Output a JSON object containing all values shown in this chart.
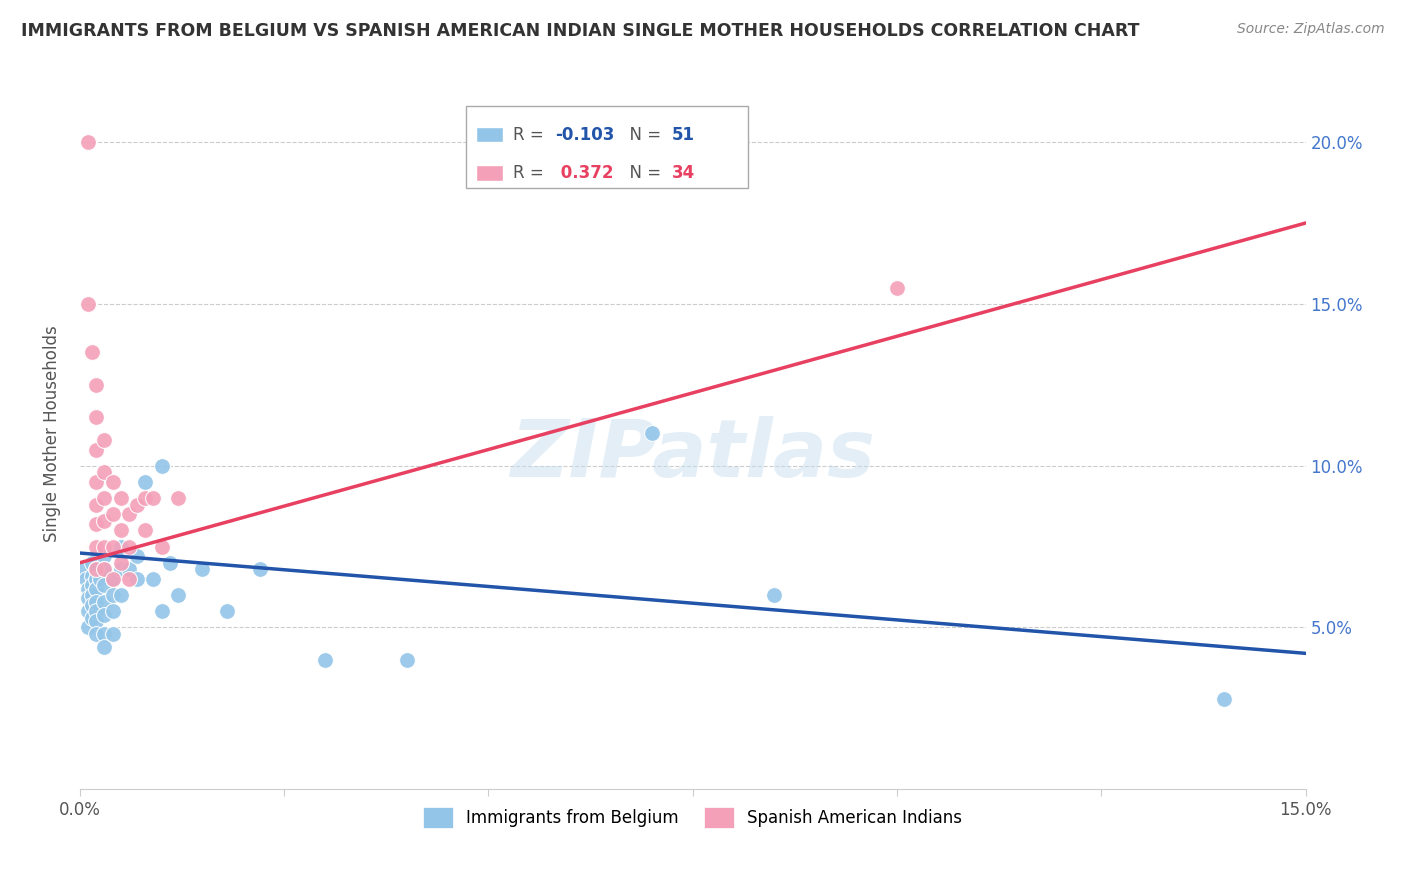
{
  "title": "IMMIGRANTS FROM BELGIUM VS SPANISH AMERICAN INDIAN SINGLE MOTHER HOUSEHOLDS CORRELATION CHART",
  "source": "Source: ZipAtlas.com",
  "ylabel": "Single Mother Households",
  "xlim": [
    0.0,
    0.15
  ],
  "ylim": [
    0.0,
    0.22
  ],
  "belgium_color": "#92C5E8",
  "spanish_color": "#F4A0B8",
  "trendline_belgium_color": "#2255AA",
  "trendline_spanish_color": "#E84060",
  "legend_R_belgium": "-0.103",
  "legend_N_belgium": "51",
  "legend_R_spanish": "0.372",
  "legend_N_spanish": "34",
  "watermark": "ZIPatlas",
  "belgium_trendline": [
    [
      0.0,
      0.073
    ],
    [
      0.15,
      0.042
    ]
  ],
  "spanish_trendline": [
    [
      0.0,
      0.07
    ],
    [
      0.15,
      0.175
    ]
  ],
  "belgium_scatter": [
    [
      0.0005,
      0.068
    ],
    [
      0.0008,
      0.065
    ],
    [
      0.001,
      0.062
    ],
    [
      0.001,
      0.059
    ],
    [
      0.001,
      0.055
    ],
    [
      0.001,
      0.05
    ],
    [
      0.0015,
      0.07
    ],
    [
      0.0015,
      0.066
    ],
    [
      0.0015,
      0.063
    ],
    [
      0.0015,
      0.06
    ],
    [
      0.0015,
      0.057
    ],
    [
      0.0015,
      0.053
    ],
    [
      0.002,
      0.068
    ],
    [
      0.002,
      0.065
    ],
    [
      0.002,
      0.062
    ],
    [
      0.002,
      0.058
    ],
    [
      0.002,
      0.055
    ],
    [
      0.002,
      0.052
    ],
    [
      0.002,
      0.048
    ],
    [
      0.0025,
      0.065
    ],
    [
      0.003,
      0.072
    ],
    [
      0.003,
      0.068
    ],
    [
      0.003,
      0.063
    ],
    [
      0.003,
      0.058
    ],
    [
      0.003,
      0.054
    ],
    [
      0.003,
      0.048
    ],
    [
      0.003,
      0.044
    ],
    [
      0.004,
      0.065
    ],
    [
      0.004,
      0.06
    ],
    [
      0.004,
      0.055
    ],
    [
      0.004,
      0.048
    ],
    [
      0.005,
      0.075
    ],
    [
      0.005,
      0.068
    ],
    [
      0.005,
      0.06
    ],
    [
      0.006,
      0.068
    ],
    [
      0.007,
      0.072
    ],
    [
      0.007,
      0.065
    ],
    [
      0.008,
      0.095
    ],
    [
      0.009,
      0.065
    ],
    [
      0.01,
      0.1
    ],
    [
      0.01,
      0.055
    ],
    [
      0.011,
      0.07
    ],
    [
      0.012,
      0.06
    ],
    [
      0.015,
      0.068
    ],
    [
      0.018,
      0.055
    ],
    [
      0.022,
      0.068
    ],
    [
      0.03,
      0.04
    ],
    [
      0.04,
      0.04
    ],
    [
      0.07,
      0.11
    ],
    [
      0.085,
      0.06
    ],
    [
      0.14,
      0.028
    ]
  ],
  "spanish_scatter": [
    [
      0.001,
      0.2
    ],
    [
      0.001,
      0.15
    ],
    [
      0.0015,
      0.135
    ],
    [
      0.002,
      0.125
    ],
    [
      0.002,
      0.115
    ],
    [
      0.002,
      0.105
    ],
    [
      0.002,
      0.095
    ],
    [
      0.002,
      0.088
    ],
    [
      0.002,
      0.082
    ],
    [
      0.002,
      0.075
    ],
    [
      0.002,
      0.068
    ],
    [
      0.003,
      0.108
    ],
    [
      0.003,
      0.098
    ],
    [
      0.003,
      0.09
    ],
    [
      0.003,
      0.083
    ],
    [
      0.003,
      0.075
    ],
    [
      0.003,
      0.068
    ],
    [
      0.004,
      0.095
    ],
    [
      0.004,
      0.085
    ],
    [
      0.004,
      0.075
    ],
    [
      0.004,
      0.065
    ],
    [
      0.005,
      0.09
    ],
    [
      0.005,
      0.08
    ],
    [
      0.005,
      0.07
    ],
    [
      0.006,
      0.085
    ],
    [
      0.006,
      0.075
    ],
    [
      0.006,
      0.065
    ],
    [
      0.007,
      0.088
    ],
    [
      0.008,
      0.09
    ],
    [
      0.008,
      0.08
    ],
    [
      0.009,
      0.09
    ],
    [
      0.01,
      0.075
    ],
    [
      0.012,
      0.09
    ],
    [
      0.1,
      0.155
    ]
  ]
}
